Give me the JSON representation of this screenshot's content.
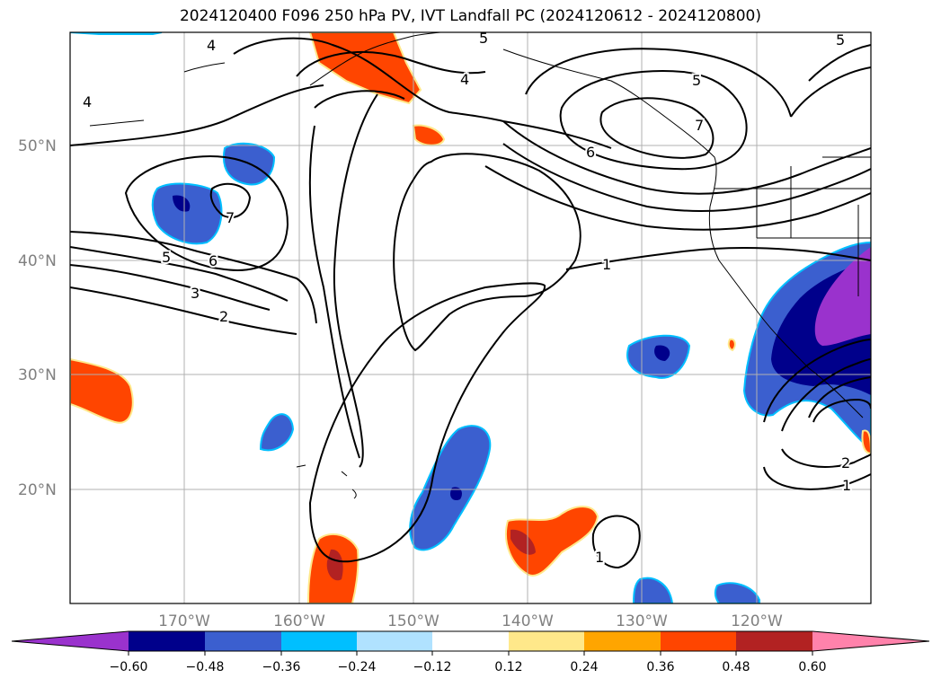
{
  "title": "2024120400 F096 250 hPa PV, IVT Landfall PC (2024120612 - 2024120800)",
  "latitude_labels": [
    "50°N",
    "40°N",
    "30°N",
    "20°N"
  ],
  "longitude_labels": [
    "170°W",
    "160°W",
    "150°W",
    "140°W",
    "130°W",
    "120°W"
  ],
  "contour_labels": [
    "4",
    "4",
    "5",
    "4",
    "5",
    "5",
    "7",
    "6",
    "7",
    "5",
    "6",
    "3",
    "2",
    "1",
    "1",
    "2",
    "1"
  ],
  "colorbar": {
    "ticks": [
      "−0.60",
      "−0.48",
      "−0.36",
      "−0.24",
      "−0.12",
      "0.12",
      "0.24",
      "0.36",
      "0.48",
      "0.60"
    ],
    "colors": {
      "neg_extend": "#9a32cd",
      "neg_060_048": "#00008b",
      "neg_048_036": "#3b5fcf",
      "neg_036_024": "#00bfff",
      "neg_024_012": "#b0e2ff",
      "neutral": "#ffffff",
      "pos_012_024": "#ffe88a",
      "pos_024_036": "#ffa500",
      "pos_036_048": "#ff4500",
      "pos_048_060": "#b22222",
      "pos_extend": "#ff82ab"
    }
  }
}
